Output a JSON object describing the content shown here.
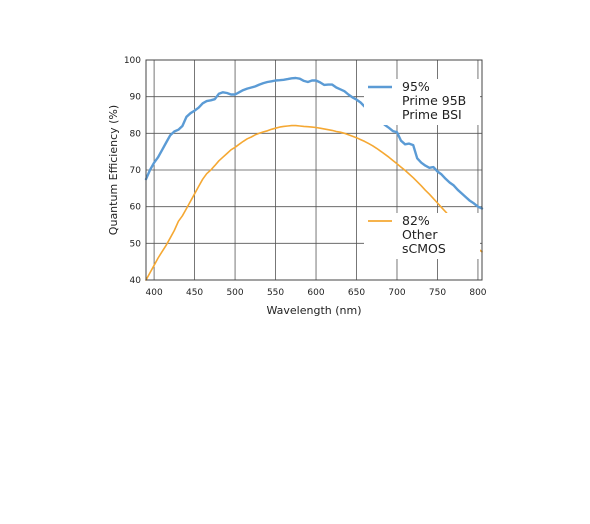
{
  "chart_data": {
    "type": "line",
    "title": "",
    "xlabel": "Wavelength (nm)",
    "ylabel": "Quantum Efficiency (%)",
    "xlim": [
      390,
      805
    ],
    "ylim": [
      40,
      100
    ],
    "xticks": [
      400,
      450,
      500,
      550,
      600,
      650,
      700,
      750,
      800
    ],
    "yticks": [
      40,
      50,
      60,
      70,
      80,
      90,
      100
    ],
    "grid": true,
    "legend_position": "right",
    "series": [
      {
        "name": "Prime 95B Prime BSI",
        "legend_lines": [
          "95%",
          "Prime 95B",
          "Prime BSI"
        ],
        "color": "#5b9bd5",
        "x": [
          390,
          395,
          400,
          405,
          410,
          415,
          420,
          425,
          430,
          435,
          440,
          445,
          450,
          455,
          460,
          465,
          470,
          475,
          480,
          485,
          490,
          495,
          500,
          505,
          510,
          515,
          520,
          525,
          530,
          535,
          540,
          545,
          550,
          555,
          560,
          565,
          570,
          575,
          580,
          585,
          590,
          595,
          600,
          605,
          610,
          615,
          620,
          625,
          630,
          635,
          640,
          645,
          650,
          655,
          660,
          665,
          670,
          675,
          680,
          685,
          690,
          695,
          700,
          705,
          710,
          715,
          720,
          725,
          730,
          735,
          740,
          745,
          750,
          755,
          760,
          765,
          770,
          775,
          780,
          785,
          790,
          795,
          800,
          805
        ],
        "y": [
          67.5,
          70,
          72,
          73.5,
          75.5,
          77.5,
          79.5,
          80.5,
          81,
          82,
          84.5,
          85.5,
          86.2,
          87,
          88.2,
          88.8,
          89,
          89.3,
          90.8,
          91.2,
          91,
          90.6,
          90.6,
          91.2,
          91.8,
          92.2,
          92.5,
          92.8,
          93.3,
          93.7,
          94,
          94.2,
          94.4,
          94.5,
          94.6,
          94.8,
          95,
          95.1,
          94.9,
          94.3,
          94,
          94.4,
          94.4,
          93.9,
          93.2,
          93.3,
          93.3,
          92.5,
          92,
          91.5,
          90.6,
          89.8,
          89.2,
          88.4,
          87.3,
          86.1,
          85.2,
          84.5,
          83.3,
          82.3,
          81.5,
          80.6,
          80.3,
          78,
          77,
          77.2,
          76.8,
          73.2,
          72,
          71.2,
          70.6,
          70.8,
          69.6,
          68.8,
          67.6,
          66.6,
          65.8,
          64.6,
          63.6,
          62.6,
          61.6,
          60.9,
          60,
          59.5
        ]
      },
      {
        "name": "Other sCMOS",
        "legend_lines": [
          "82%",
          "Other",
          "sCMOS"
        ],
        "color": "#f5a833",
        "x": [
          390,
          395,
          400,
          405,
          410,
          415,
          420,
          425,
          430,
          435,
          440,
          445,
          450,
          455,
          460,
          465,
          470,
          475,
          480,
          485,
          490,
          495,
          500,
          505,
          510,
          515,
          520,
          525,
          530,
          535,
          540,
          545,
          550,
          555,
          560,
          565,
          570,
          575,
          580,
          585,
          590,
          595,
          600,
          605,
          610,
          615,
          620,
          625,
          630,
          635,
          640,
          645,
          650,
          655,
          660,
          665,
          670,
          675,
          680,
          685,
          690,
          695,
          700,
          705,
          710,
          715,
          720,
          725,
          730,
          735,
          740,
          745,
          750,
          755,
          760,
          765,
          770,
          775,
          780,
          785,
          790,
          795,
          800,
          805
        ],
        "y": [
          40,
          42,
          44,
          46,
          47.8,
          49.5,
          51.5,
          53.5,
          56,
          57.5,
          59.5,
          61.5,
          63.5,
          65.5,
          67.5,
          69,
          70,
          71.2,
          72.5,
          73.5,
          74.5,
          75.5,
          76.2,
          77,
          77.8,
          78.5,
          79,
          79.6,
          80,
          80.4,
          80.7,
          81.1,
          81.4,
          81.7,
          81.9,
          82,
          82.1,
          82.1,
          82,
          81.9,
          81.8,
          81.7,
          81.6,
          81.4,
          81.2,
          81,
          80.8,
          80.5,
          80.3,
          80,
          79.6,
          79.2,
          78.8,
          78.3,
          77.8,
          77.2,
          76.6,
          75.9,
          75.1,
          74.3,
          73.5,
          72.6,
          71.7,
          70.8,
          69.9,
          68.9,
          67.9,
          66.8,
          65.7,
          64.5,
          63.4,
          62.2,
          61,
          59.8,
          58.6,
          57.3,
          56,
          54.8,
          53.5,
          52.2,
          51,
          49.7,
          48.5,
          47.7
        ]
      }
    ]
  }
}
